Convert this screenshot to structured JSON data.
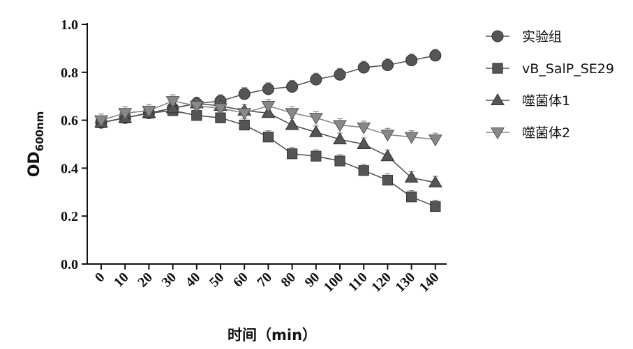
{
  "chart_data": {
    "type": "line",
    "xlabel": "时间（min）",
    "ylabel_main": "OD",
    "ylabel_sub": "600nm",
    "x": [
      0,
      10,
      20,
      30,
      40,
      50,
      60,
      70,
      80,
      90,
      100,
      110,
      120,
      130,
      140
    ],
    "x_tick_labels": [
      "0",
      "10",
      "20",
      "30",
      "40",
      "50",
      "60",
      "70",
      "80",
      "90",
      "100",
      "110",
      "120",
      "130",
      "140"
    ],
    "ylim": [
      0,
      1.0
    ],
    "y_tick_labels": [
      "0.0",
      "0.2",
      "0.4",
      "0.6",
      "0.8",
      "1.0"
    ],
    "y_ticks": [
      0,
      0.2,
      0.4,
      0.6,
      0.8,
      1.0
    ],
    "grid": false,
    "legend_position": "right",
    "series": [
      {
        "name": "实验组",
        "marker": "circle",
        "color": "#555555",
        "values": [
          0.59,
          0.61,
          0.63,
          0.65,
          0.67,
          0.68,
          0.71,
          0.73,
          0.74,
          0.77,
          0.79,
          0.82,
          0.83,
          0.85,
          0.87
        ]
      },
      {
        "name": "vB_SalP_SE29",
        "marker": "square",
        "color": "#555555",
        "values": [
          0.59,
          0.61,
          0.63,
          0.64,
          0.62,
          0.61,
          0.58,
          0.53,
          0.46,
          0.45,
          0.43,
          0.39,
          0.35,
          0.28,
          0.24
        ]
      },
      {
        "name": "噬菌体1",
        "marker": "triangle-up",
        "color": "#555555",
        "values": [
          0.59,
          0.61,
          0.63,
          0.65,
          0.67,
          0.66,
          0.64,
          0.63,
          0.58,
          0.55,
          0.52,
          0.5,
          0.45,
          0.36,
          0.34
        ]
      },
      {
        "name": "噬菌体2",
        "marker": "triangle-down",
        "color": "#888888",
        "values": [
          0.6,
          0.63,
          0.64,
          0.68,
          0.66,
          0.65,
          0.63,
          0.66,
          0.63,
          0.61,
          0.58,
          0.57,
          0.54,
          0.53,
          0.52
        ]
      }
    ]
  }
}
